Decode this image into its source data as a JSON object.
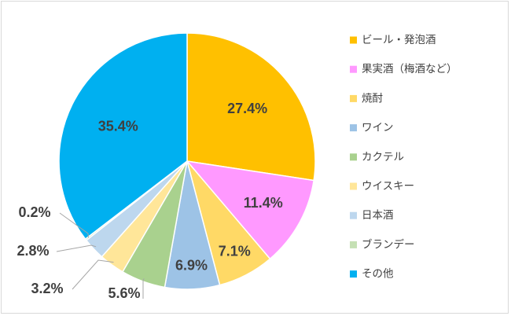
{
  "chart_data": {
    "type": "pie",
    "title": "",
    "start_angle_deg": 0,
    "direction": "clockwise",
    "legend_position": "right",
    "slices": [
      {
        "label": "ビール・発泡酒",
        "value": 27.4,
        "display": "27.4%",
        "color": "#FFC000"
      },
      {
        "label": "果実酒（梅酒など）",
        "value": 11.4,
        "display": "11.4%",
        "color": "#FF99FF"
      },
      {
        "label": "焼酎",
        "value": 7.1,
        "display": "7.1%",
        "color": "#FFD966"
      },
      {
        "label": "ワイン",
        "value": 6.9,
        "display": "6.9%",
        "color": "#9DC3E6"
      },
      {
        "label": "カクテル",
        "value": 5.6,
        "display": "5.6%",
        "color": "#A9D18E"
      },
      {
        "label": "ウイスキー",
        "value": 3.2,
        "display": "3.2%",
        "color": "#FFE699"
      },
      {
        "label": "日本酒",
        "value": 2.8,
        "display": "2.8%",
        "color": "#BDD7EE"
      },
      {
        "label": "ブランデー",
        "value": 0.2,
        "display": "0.2%",
        "color": "#C5E0B4"
      },
      {
        "label": "その他",
        "value": 35.4,
        "display": "35.4%",
        "color": "#00B0F0"
      }
    ]
  }
}
